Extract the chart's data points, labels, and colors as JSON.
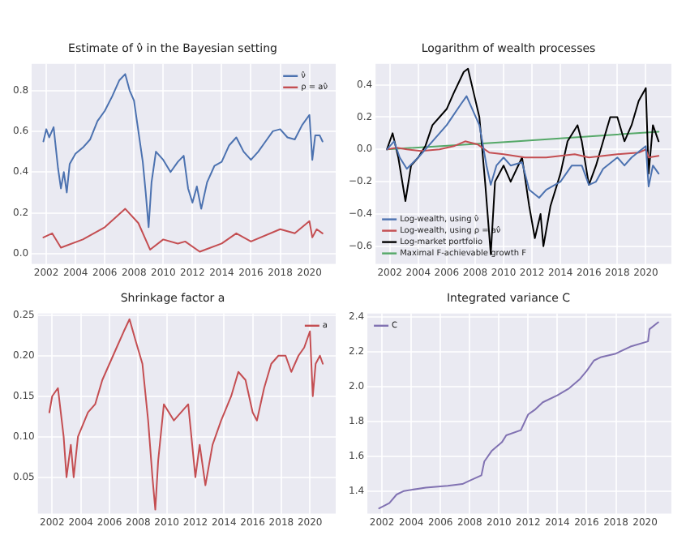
{
  "chart_data": [
    {
      "type": "line",
      "title": "Estimate of ν̂ in the Bayesian setting",
      "legend": "top right",
      "grid": true,
      "xlim": [
        2001.0,
        2021.8
      ],
      "xticks": [
        2002,
        2004,
        2006,
        2008,
        2010,
        2012,
        2014,
        2016,
        2018,
        2020
      ],
      "ylim": [
        -0.05,
        0.93
      ],
      "yticks": [
        {
          "value": 0,
          "label": "0.0"
        },
        {
          "value": 0.2,
          "label": "0.2"
        },
        {
          "value": 0.4,
          "label": "0.4"
        },
        {
          "value": 0.6,
          "label": "0.6"
        },
        {
          "value": 0.8,
          "label": "0.8"
        }
      ],
      "series": [
        {
          "name": "ν̂",
          "color": "#4c72b0",
          "x": [
            2001.8,
            2002.0,
            2002.2,
            2002.5,
            2002.8,
            2003.0,
            2003.2,
            2003.4,
            2003.6,
            2004.0,
            2004.5,
            2005.0,
            2005.5,
            2006.0,
            2006.5,
            2007.0,
            2007.4,
            2007.7,
            2008.0,
            2008.3,
            2008.6,
            2008.8,
            2009.0,
            2009.2,
            2009.5,
            2010.0,
            2010.5,
            2011.0,
            2011.4,
            2011.7,
            2012.0,
            2012.3,
            2012.6,
            2013.0,
            2013.5,
            2014.0,
            2014.5,
            2015.0,
            2015.5,
            2016.0,
            2016.5,
            2017.0,
            2017.5,
            2018.0,
            2018.5,
            2019.0,
            2019.5,
            2020.0,
            2020.2,
            2020.4,
            2020.7,
            2020.9
          ],
          "values": [
            0.55,
            0.61,
            0.57,
            0.62,
            0.42,
            0.32,
            0.4,
            0.3,
            0.44,
            0.49,
            0.52,
            0.56,
            0.65,
            0.7,
            0.77,
            0.85,
            0.88,
            0.8,
            0.75,
            0.6,
            0.45,
            0.3,
            0.13,
            0.35,
            0.5,
            0.46,
            0.4,
            0.45,
            0.48,
            0.32,
            0.25,
            0.33,
            0.22,
            0.35,
            0.43,
            0.45,
            0.53,
            0.57,
            0.5,
            0.46,
            0.5,
            0.55,
            0.6,
            0.61,
            0.57,
            0.56,
            0.63,
            0.68,
            0.46,
            0.58,
            0.58,
            0.55
          ]
        },
        {
          "name": "ρ = aν̂",
          "color": "#c44e52",
          "x": [
            2001.8,
            2002.4,
            2003.0,
            2004.5,
            2006.0,
            2007.4,
            2008.3,
            2009.1,
            2010.0,
            2011.0,
            2011.5,
            2012.5,
            2014.0,
            2015.0,
            2016.0,
            2018.0,
            2019.0,
            2020.0,
            2020.2,
            2020.5,
            2020.9
          ],
          "values": [
            0.08,
            0.1,
            0.03,
            0.07,
            0.13,
            0.22,
            0.15,
            0.02,
            0.07,
            0.05,
            0.06,
            0.01,
            0.05,
            0.1,
            0.06,
            0.12,
            0.1,
            0.16,
            0.08,
            0.12,
            0.1
          ]
        }
      ]
    },
    {
      "type": "line",
      "title": "Logarithm of wealth processes",
      "legend": "bottom left",
      "grid": true,
      "xlim": [
        2001.0,
        2021.8
      ],
      "xticks": [
        2002,
        2004,
        2006,
        2008,
        2010,
        2012,
        2014,
        2016,
        2018,
        2020
      ],
      "ylim": [
        -0.71,
        0.53
      ],
      "yticks": [
        {
          "value": -0.6,
          "label": "−0.6"
        },
        {
          "value": -0.4,
          "label": "−0.4"
        },
        {
          "value": -0.2,
          "label": "−0.2"
        },
        {
          "value": 0,
          "label": "0.0"
        },
        {
          "value": 0.2,
          "label": "0.2"
        },
        {
          "value": 0.4,
          "label": "0.4"
        }
      ],
      "series": [
        {
          "name": "Log-wealth, using ν̂",
          "color": "#4c72b0",
          "x": [
            2001.8,
            2002.3,
            2002.7,
            2003.2,
            2004.0,
            2004.5,
            2005.0,
            2006.0,
            2007.0,
            2007.4,
            2007.8,
            2008.3,
            2008.8,
            2009.1,
            2009.5,
            2010.0,
            2010.5,
            2011.3,
            2011.8,
            2012.5,
            2013.0,
            2014.0,
            2014.8,
            2015.5,
            2016.0,
            2016.5,
            2017.0,
            2018.0,
            2018.5,
            2019.0,
            2020.0,
            2020.2,
            2020.5,
            2020.9
          ],
          "values": [
            0,
            0.05,
            -0.05,
            -0.12,
            -0.05,
            0,
            0.05,
            0.15,
            0.28,
            0.33,
            0.25,
            0.15,
            -0.1,
            -0.22,
            -0.1,
            -0.05,
            -0.1,
            -0.08,
            -0.25,
            -0.3,
            -0.25,
            -0.2,
            -0.1,
            -0.1,
            -0.22,
            -0.2,
            -0.12,
            -0.05,
            -0.1,
            -0.05,
            0.02,
            -0.23,
            -0.1,
            -0.15
          ]
        },
        {
          "name": "Log-wealth, using ρ = aν̂",
          "color": "#c44e52",
          "x": [
            2001.8,
            2002.5,
            2003.2,
            2004.2,
            2005.5,
            2006.5,
            2007.3,
            2008.2,
            2009.0,
            2010.0,
            2011.5,
            2013.0,
            2015.0,
            2016.0,
            2018.0,
            2019.5,
            2020.0,
            2020.2,
            2020.9
          ],
          "values": [
            0,
            0.01,
            0,
            -0.01,
            0,
            0.02,
            0.05,
            0.03,
            -0.02,
            -0.03,
            -0.05,
            -0.05,
            -0.03,
            -0.05,
            -0.03,
            -0.02,
            0,
            -0.05,
            -0.04
          ]
        },
        {
          "name": "Log-market portfolio",
          "color": "#000000",
          "x": [
            2001.8,
            2002.2,
            2002.6,
            2003.1,
            2003.5,
            2004.0,
            2004.5,
            2005.0,
            2006.0,
            2006.5,
            2007.2,
            2007.5,
            2007.9,
            2008.3,
            2008.7,
            2009.1,
            2009.4,
            2010.0,
            2010.5,
            2011.3,
            2011.8,
            2012.2,
            2012.6,
            2012.8,
            2013.3,
            2014.0,
            2014.5,
            2015.2,
            2015.5,
            2016.0,
            2016.5,
            2017.0,
            2017.5,
            2018.0,
            2018.5,
            2019.0,
            2019.5,
            2020.0,
            2020.2,
            2020.5,
            2020.9
          ],
          "values": [
            0,
            0.1,
            -0.05,
            -0.32,
            -0.1,
            -0.05,
            0.02,
            0.15,
            0.25,
            0.35,
            0.48,
            0.5,
            0.35,
            0.2,
            -0.2,
            -0.65,
            -0.2,
            -0.1,
            -0.2,
            -0.05,
            -0.35,
            -0.55,
            -0.4,
            -0.6,
            -0.35,
            -0.15,
            0.05,
            0.15,
            0.05,
            -0.22,
            -0.1,
            0.05,
            0.2,
            0.2,
            0.05,
            0.15,
            0.3,
            0.38,
            -0.15,
            0.15,
            0.05
          ]
        },
        {
          "name": "Maximal F-achievable growth F",
          "color": "#55a868",
          "x": [
            2001.8,
            2011.0,
            2020.9
          ],
          "values": [
            0,
            0.05,
            0.11
          ]
        }
      ]
    },
    {
      "type": "line",
      "title": "Shrinkage factor a",
      "legend": "top right",
      "grid": true,
      "xlim": [
        2001.0,
        2021.8
      ],
      "xticks": [
        2002,
        2004,
        2006,
        2008,
        2010,
        2012,
        2014,
        2016,
        2018,
        2020
      ],
      "ylim": [
        0.005,
        0.252
      ],
      "yticks": [
        0.05,
        {
          "value": 0.1,
          "label": "0.10"
        },
        0.15,
        {
          "value": 0.2,
          "label": "0.20"
        },
        0.25
      ],
      "series": [
        {
          "name": "a",
          "color": "#c44e52",
          "x": [
            2001.8,
            2002.0,
            2002.4,
            2002.8,
            2003.0,
            2003.3,
            2003.5,
            2003.8,
            2004.5,
            2005.0,
            2005.5,
            2006.0,
            2006.5,
            2007.0,
            2007.4,
            2007.8,
            2008.3,
            2008.7,
            2009.0,
            2009.2,
            2009.4,
            2009.8,
            2010.5,
            2011.0,
            2011.5,
            2012.0,
            2012.3,
            2012.7,
            2013.2,
            2013.8,
            2014.5,
            2015.0,
            2015.5,
            2016.0,
            2016.3,
            2016.8,
            2017.3,
            2017.8,
            2018.3,
            2018.7,
            2019.2,
            2019.6,
            2020.0,
            2020.2,
            2020.4,
            2020.7,
            2020.9
          ],
          "values": [
            0.13,
            0.15,
            0.16,
            0.1,
            0.05,
            0.09,
            0.05,
            0.1,
            0.13,
            0.14,
            0.17,
            0.19,
            0.21,
            0.23,
            0.245,
            0.22,
            0.19,
            0.12,
            0.05,
            0.01,
            0.07,
            0.14,
            0.12,
            0.13,
            0.14,
            0.05,
            0.09,
            0.04,
            0.09,
            0.12,
            0.15,
            0.18,
            0.17,
            0.13,
            0.12,
            0.16,
            0.19,
            0.2,
            0.2,
            0.18,
            0.2,
            0.21,
            0.23,
            0.15,
            0.19,
            0.2,
            0.19
          ]
        }
      ]
    },
    {
      "type": "line",
      "title": "Integrated variance C",
      "legend": "top left",
      "grid": true,
      "xlim": [
        2001.0,
        2021.8
      ],
      "xticks": [
        2002,
        2004,
        2006,
        2008,
        2010,
        2012,
        2014,
        2016,
        2018,
        2020
      ],
      "ylim": [
        1.27,
        2.42
      ],
      "yticks": [
        1.4,
        1.6,
        1.8,
        {
          "value": 2,
          "label": "2.0"
        },
        2.2,
        2.4
      ],
      "series": [
        {
          "name": "C",
          "color": "#8172b2",
          "x": [
            2001.8,
            2002.5,
            2003.0,
            2003.5,
            2005.0,
            2006.5,
            2007.5,
            2008.0,
            2008.8,
            2009.0,
            2009.5,
            2010.2,
            2010.5,
            2011.5,
            2012.0,
            2012.5,
            2013.0,
            2014.0,
            2014.8,
            2015.5,
            2016.0,
            2016.5,
            2017.0,
            2018.0,
            2019.0,
            2020.2,
            2020.3,
            2020.9
          ],
          "values": [
            1.3,
            1.33,
            1.38,
            1.4,
            1.42,
            1.43,
            1.44,
            1.46,
            1.49,
            1.57,
            1.63,
            1.68,
            1.72,
            1.75,
            1.84,
            1.87,
            1.91,
            1.95,
            1.99,
            2.04,
            2.09,
            2.15,
            2.17,
            2.19,
            2.23,
            2.26,
            2.33,
            2.37
          ]
        }
      ]
    }
  ]
}
